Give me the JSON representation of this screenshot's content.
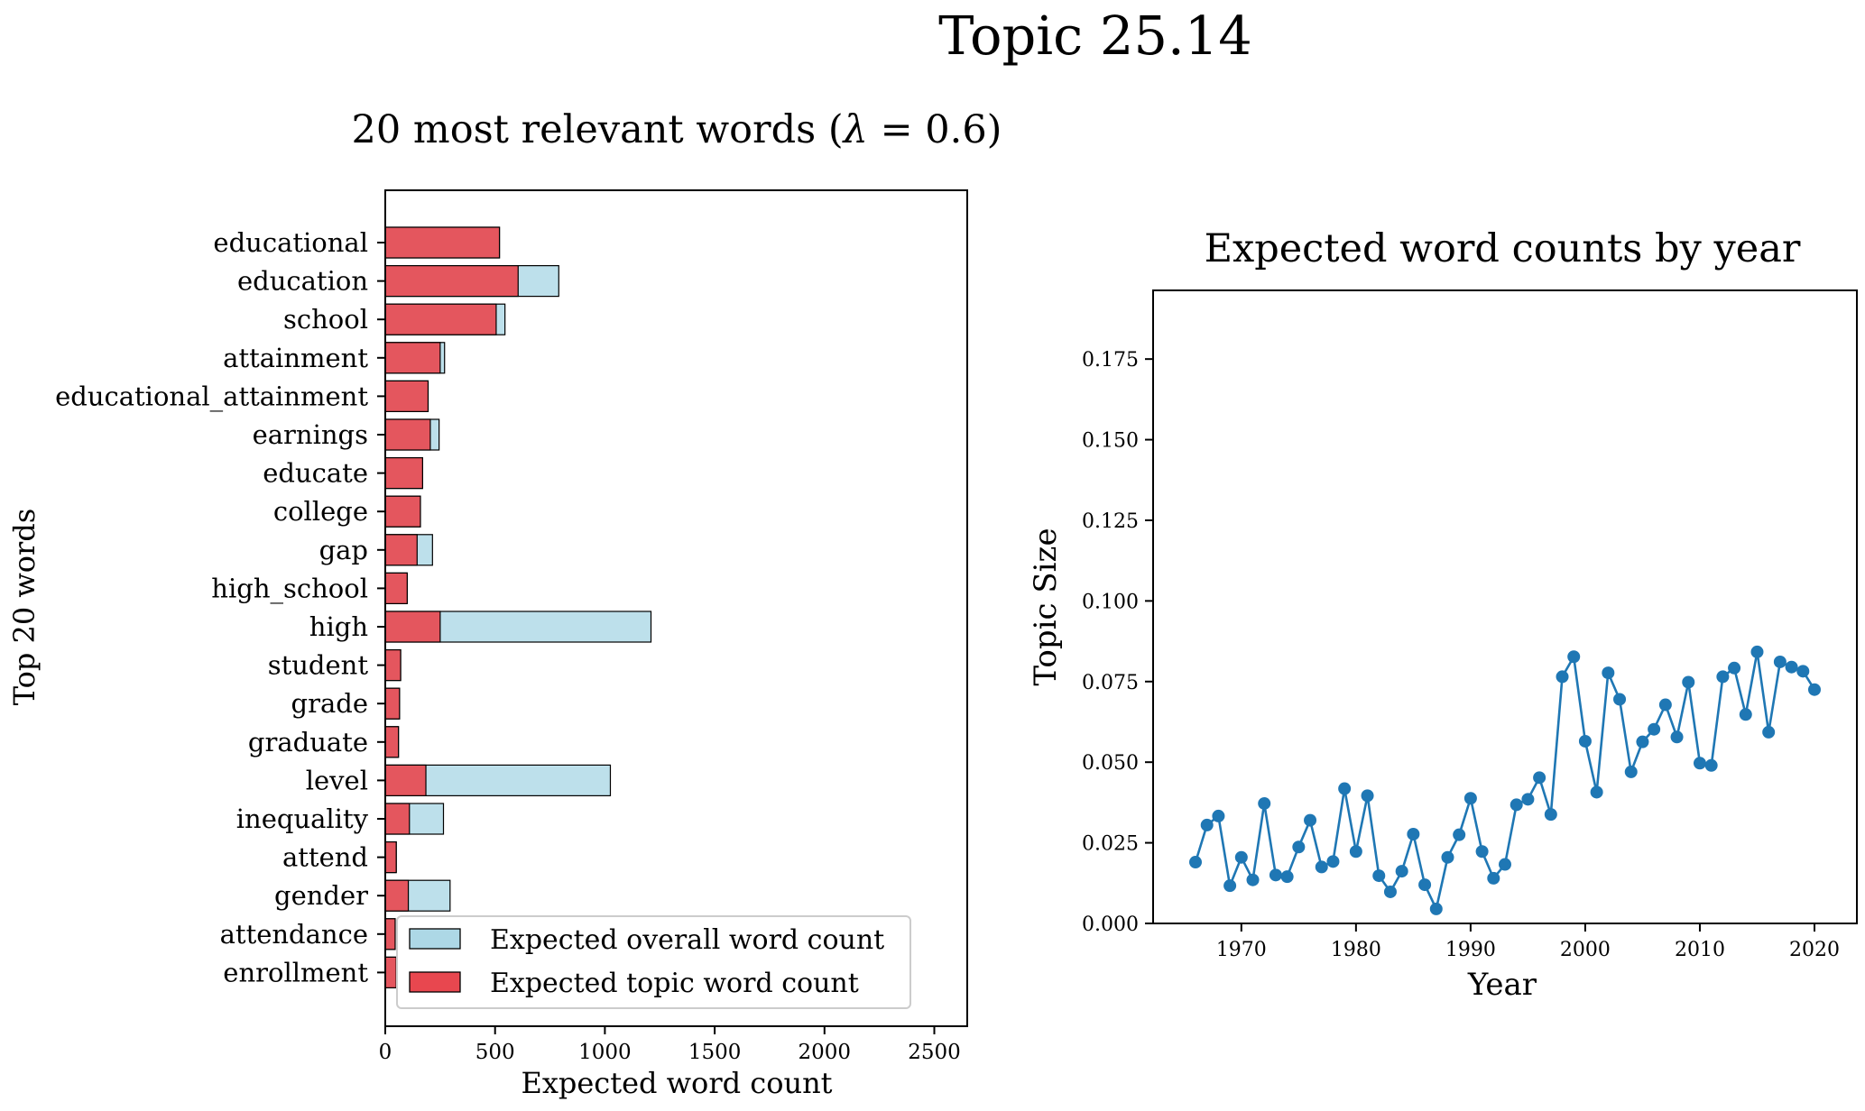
{
  "figure": {
    "title": "Topic 25.14"
  },
  "chart_data": [
    {
      "type": "bar",
      "orientation": "horizontal",
      "title": "20 most relevant words (λ = 0.6)",
      "title_prefix": "20 most relevant words (",
      "title_lambda": "λ",
      "title_suffix": " = 0.6)",
      "xlabel": "Expected word count",
      "ylabel": "Top 20 words",
      "xlim": [
        0,
        2650
      ],
      "xticks": [
        0,
        500,
        1000,
        1500,
        2000,
        2500
      ],
      "grid": false,
      "legend_position": "lower-right",
      "categories": [
        "educational",
        "education",
        "school",
        "attainment",
        "educational_attainment",
        "earnings",
        "educate",
        "college",
        "gap",
        "high_school",
        "high",
        "student",
        "grade",
        "graduate",
        "level",
        "inequality",
        "attend",
        "gender",
        "attendance",
        "enrollment"
      ],
      "series": [
        {
          "name": "Expected overall word count",
          "color": "#add8e6",
          "values": [
            520,
            790,
            545,
            270,
            195,
            245,
            170,
            160,
            215,
            100,
            1210,
            70,
            65,
            60,
            1025,
            265,
            50,
            295,
            45,
            50
          ]
        },
        {
          "name": "Expected topic word count",
          "color": "#e8474f",
          "values": [
            520,
            605,
            505,
            250,
            195,
            205,
            170,
            160,
            145,
            100,
            250,
            70,
            65,
            60,
            185,
            110,
            50,
            105,
            45,
            50
          ]
        }
      ]
    },
    {
      "type": "line",
      "title": "Expected word counts by year",
      "xlabel": "Year",
      "ylabel": "Topic Size",
      "xlim": [
        1962.3,
        2023.7
      ],
      "ylim": [
        0,
        0.1963
      ],
      "xticks": [
        1970,
        1980,
        1990,
        2000,
        2010,
        2020
      ],
      "yticks": [
        "0.000",
        "0.025",
        "0.050",
        "0.075",
        "0.100",
        "0.125",
        "0.150",
        "0.175"
      ],
      "grid": false,
      "color": "#1f77b4",
      "x": [
        1966,
        1967,
        1968,
        1969,
        1970,
        1971,
        1972,
        1973,
        1974,
        1975,
        1976,
        1977,
        1978,
        1979,
        1980,
        1981,
        1982,
        1983,
        1984,
        1985,
        1986,
        1987,
        1988,
        1989,
        1990,
        1991,
        1992,
        1993,
        1994,
        1995,
        1996,
        1997,
        1998,
        1999,
        2000,
        2001,
        2002,
        2003,
        2004,
        2005,
        2006,
        2007,
        2008,
        2009,
        2010,
        2011,
        2012,
        2013,
        2014,
        2015,
        2016,
        2017,
        2018,
        2019,
        2020
      ],
      "y": [
        0.019,
        0.0305,
        0.0333,
        0.0117,
        0.0205,
        0.0135,
        0.0372,
        0.015,
        0.0145,
        0.0237,
        0.032,
        0.0175,
        0.0192,
        0.0418,
        0.0223,
        0.0396,
        0.0148,
        0.0098,
        0.0162,
        0.0277,
        0.012,
        0.0045,
        0.0205,
        0.0275,
        0.0388,
        0.0223,
        0.014,
        0.0183,
        0.0368,
        0.0385,
        0.0452,
        0.0338,
        0.0765,
        0.0827,
        0.0565,
        0.0407,
        0.0777,
        0.0695,
        0.047,
        0.0563,
        0.0602,
        0.0678,
        0.0578,
        0.0748,
        0.0497,
        0.049,
        0.0765,
        0.0792,
        0.0648,
        0.0842,
        0.0593,
        0.0811,
        0.0795,
        0.0782,
        0.0725
      ]
    }
  ]
}
